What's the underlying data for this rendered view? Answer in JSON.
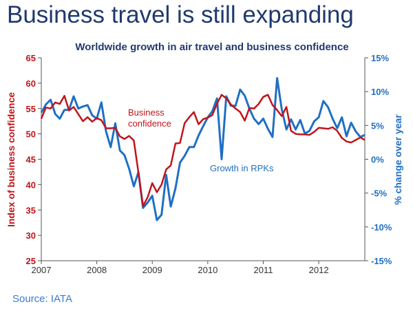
{
  "headline": "Business travel is still expanding",
  "source": "Source: IATA",
  "colors": {
    "headline": "#1f3a6e",
    "confidence": "#c0141a",
    "rpk": "#1f6fc4",
    "axis_left": "#c0141a",
    "axis_right": "#1f6fc4",
    "subtitle": "#1f3a6e",
    "source": "#3a7bd0"
  },
  "chart_data": {
    "type": "line",
    "title": "Worldwide growth in air travel and business confidence",
    "x_ticks": [
      "2007",
      "2008",
      "2009",
      "2010",
      "2011",
      "2012"
    ],
    "xlim": [
      2007.0,
      2012.83
    ],
    "y_left": {
      "label": "Index of business confidence",
      "min": 25,
      "max": 65,
      "ticks": [
        "25",
        "30",
        "35",
        "40",
        "45",
        "50",
        "55",
        "60",
        "65"
      ]
    },
    "y_right": {
      "label": "% change over year",
      "min": -15,
      "max": 15,
      "ticks": [
        "-15%",
        "-10%",
        "-5%",
        "0%",
        "5%",
        "10%",
        "15%"
      ]
    },
    "annotations": {
      "confidence": [
        "Business",
        "confidence"
      ],
      "rpk": [
        "Growth in RPKs"
      ]
    },
    "grid": false,
    "series": [
      {
        "key": "confidence",
        "axis": "left",
        "x": [
          2007.0,
          2007.083,
          2007.167,
          2007.25,
          2007.333,
          2007.417,
          2007.5,
          2007.583,
          2007.667,
          2007.75,
          2007.833,
          2007.917,
          2008.0,
          2008.083,
          2008.167,
          2008.25,
          2008.333,
          2008.417,
          2008.5,
          2008.583,
          2008.667,
          2008.75,
          2008.833,
          2008.917,
          2009.0,
          2009.083,
          2009.167,
          2009.25,
          2009.333,
          2009.417,
          2009.5,
          2009.583,
          2009.667,
          2009.75,
          2009.833,
          2009.917,
          2010.0,
          2010.083,
          2010.167,
          2010.25,
          2010.333,
          2010.417,
          2010.5,
          2010.583,
          2010.667,
          2010.75,
          2010.833,
          2010.917,
          2011.0,
          2011.083,
          2011.167,
          2011.25,
          2011.333,
          2011.417,
          2011.5,
          2011.583,
          2011.667,
          2011.75,
          2011.833,
          2011.917,
          2012.0,
          2012.083,
          2012.167,
          2012.25,
          2012.333,
          2012.417,
          2012.5,
          2012.583,
          2012.667,
          2012.75,
          2012.83
        ],
        "y": [
          53.0,
          55.2,
          55.0,
          56.2,
          55.9,
          57.5,
          54.6,
          55.3,
          53.9,
          52.5,
          53.3,
          52.4,
          53.1,
          52.7,
          51.1,
          51.1,
          51.2,
          49.5,
          49.0,
          49.6,
          48.7,
          42.4,
          35.8,
          37.5,
          40.3,
          38.5,
          40.0,
          43.0,
          43.8,
          48.1,
          48.2,
          52.1,
          53.3,
          54.3,
          51.9,
          52.9,
          53.2,
          53.7,
          56.0,
          57.7,
          57.0,
          55.8,
          55.0,
          54.3,
          52.6,
          55.1,
          55.0,
          55.9,
          57.3,
          57.7,
          55.7,
          54.7,
          53.5,
          55.3,
          50.6,
          50.0,
          49.9,
          49.9,
          49.8,
          50.4,
          51.2,
          51.1,
          51.0,
          51.3,
          50.6,
          49.2,
          48.5,
          48.3,
          48.8,
          49.3,
          48.8
        ]
      },
      {
        "key": "rpk",
        "axis": "right",
        "x": [
          2007.0,
          2007.083,
          2007.167,
          2007.25,
          2007.333,
          2007.417,
          2007.5,
          2007.583,
          2007.667,
          2007.75,
          2007.833,
          2007.917,
          2008.0,
          2008.083,
          2008.167,
          2008.25,
          2008.333,
          2008.417,
          2008.5,
          2008.583,
          2008.667,
          2008.75,
          2008.833,
          2008.917,
          2009.0,
          2009.083,
          2009.167,
          2009.25,
          2009.333,
          2009.417,
          2009.5,
          2009.583,
          2009.667,
          2009.75,
          2009.833,
          2009.917,
          2010.0,
          2010.083,
          2010.167,
          2010.25,
          2010.333,
          2010.417,
          2010.5,
          2010.583,
          2010.667,
          2010.75,
          2010.833,
          2010.917,
          2011.0,
          2011.083,
          2011.167,
          2011.25,
          2011.333,
          2011.417,
          2011.5,
          2011.583,
          2011.667,
          2011.75,
          2011.833,
          2011.917,
          2012.0,
          2012.083,
          2012.167,
          2012.25,
          2012.333,
          2012.417,
          2012.5,
          2012.583,
          2012.667,
          2012.75,
          2012.83
        ],
        "y": [
          6.9,
          8.1,
          8.8,
          6.7,
          6.0,
          7.3,
          7.3,
          9.3,
          7.5,
          7.8,
          8.0,
          6.5,
          6.0,
          8.4,
          4.1,
          1.8,
          5.3,
          1.3,
          0.6,
          -1.4,
          -4.0,
          -1.9,
          -7.2,
          -6.4,
          -5.4,
          -9.0,
          -8.2,
          -2.3,
          -7.0,
          -4.3,
          -0.5,
          0.5,
          1.8,
          1.8,
          3.5,
          4.9,
          6.2,
          7.1,
          9.0,
          0.0,
          9.3,
          7.9,
          7.9,
          10.3,
          9.4,
          7.5,
          6.0,
          5.2,
          6.0,
          4.5,
          3.3,
          12.0,
          7.4,
          4.4,
          5.9,
          4.4,
          5.8,
          3.8,
          4.2,
          5.6,
          6.2,
          8.6,
          7.7,
          6.0,
          4.6,
          6.2,
          3.4,
          5.4,
          4.1,
          3.3,
          3.6
        ]
      }
    ]
  }
}
